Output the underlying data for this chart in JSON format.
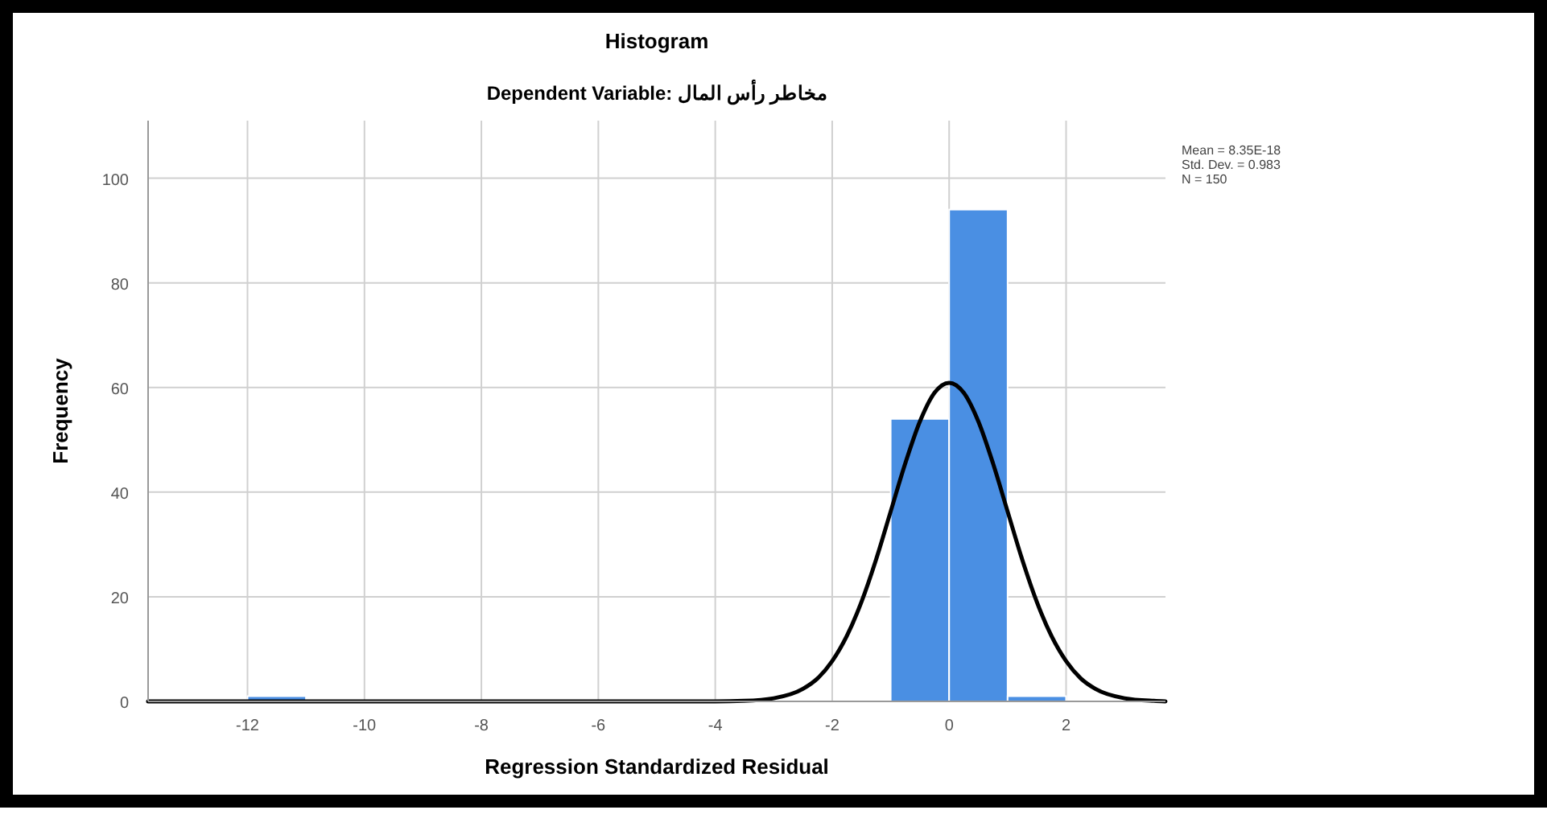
{
  "chart_data": {
    "type": "histogram",
    "title": "Histogram",
    "subtitle": "Dependent Variable: مخاطر رأس المال",
    "xlabel": "Regression Standardized Residual",
    "ylabel": "Frequency",
    "bins": [
      -12,
      -11,
      -10,
      -9,
      -8,
      -7,
      -6,
      -5,
      -4,
      -3,
      -2,
      -1,
      0,
      1,
      2
    ],
    "values": [
      1,
      0,
      0,
      0,
      0,
      0,
      0,
      0,
      0,
      0,
      0,
      54,
      94,
      1
    ],
    "color": "#4a8fe3",
    "series": [
      {
        "type": "line",
        "color": "#000000",
        "x": [
          -13.7,
          -4,
          -3.5,
          -3,
          -2.5,
          -2.25,
          -2,
          -1.75,
          -1.5,
          -1.25,
          -1,
          -0.75,
          -0.5,
          -0.25,
          0,
          0.25,
          0.5,
          0.75,
          1,
          1.25,
          1.5,
          1.75,
          2,
          2.25,
          2.5,
          3,
          3.5,
          3.7
        ],
        "values": [
          0,
          0,
          0.1,
          0.6,
          2.4,
          4.4,
          7.7,
          12.5,
          19.0,
          27.1,
          36.3,
          45.5,
          53.5,
          59.0,
          60.9,
          59.0,
          53.5,
          45.5,
          36.3,
          27.1,
          19.0,
          12.5,
          7.7,
          4.4,
          2.4,
          0.6,
          0.1,
          0
        ]
      }
    ],
    "xlim": [
      -13.7,
      3.7
    ],
    "xticks": [
      -12,
      -10,
      -8,
      -6,
      -4,
      -2,
      0,
      2
    ],
    "ylim": [
      0,
      111
    ],
    "yticks": [
      0,
      20,
      40,
      60,
      80,
      100
    ],
    "grid": true,
    "annotations": [
      "Mean = 8.35E-18",
      "Std. Dev. = 0.983",
      "N = 150"
    ]
  }
}
